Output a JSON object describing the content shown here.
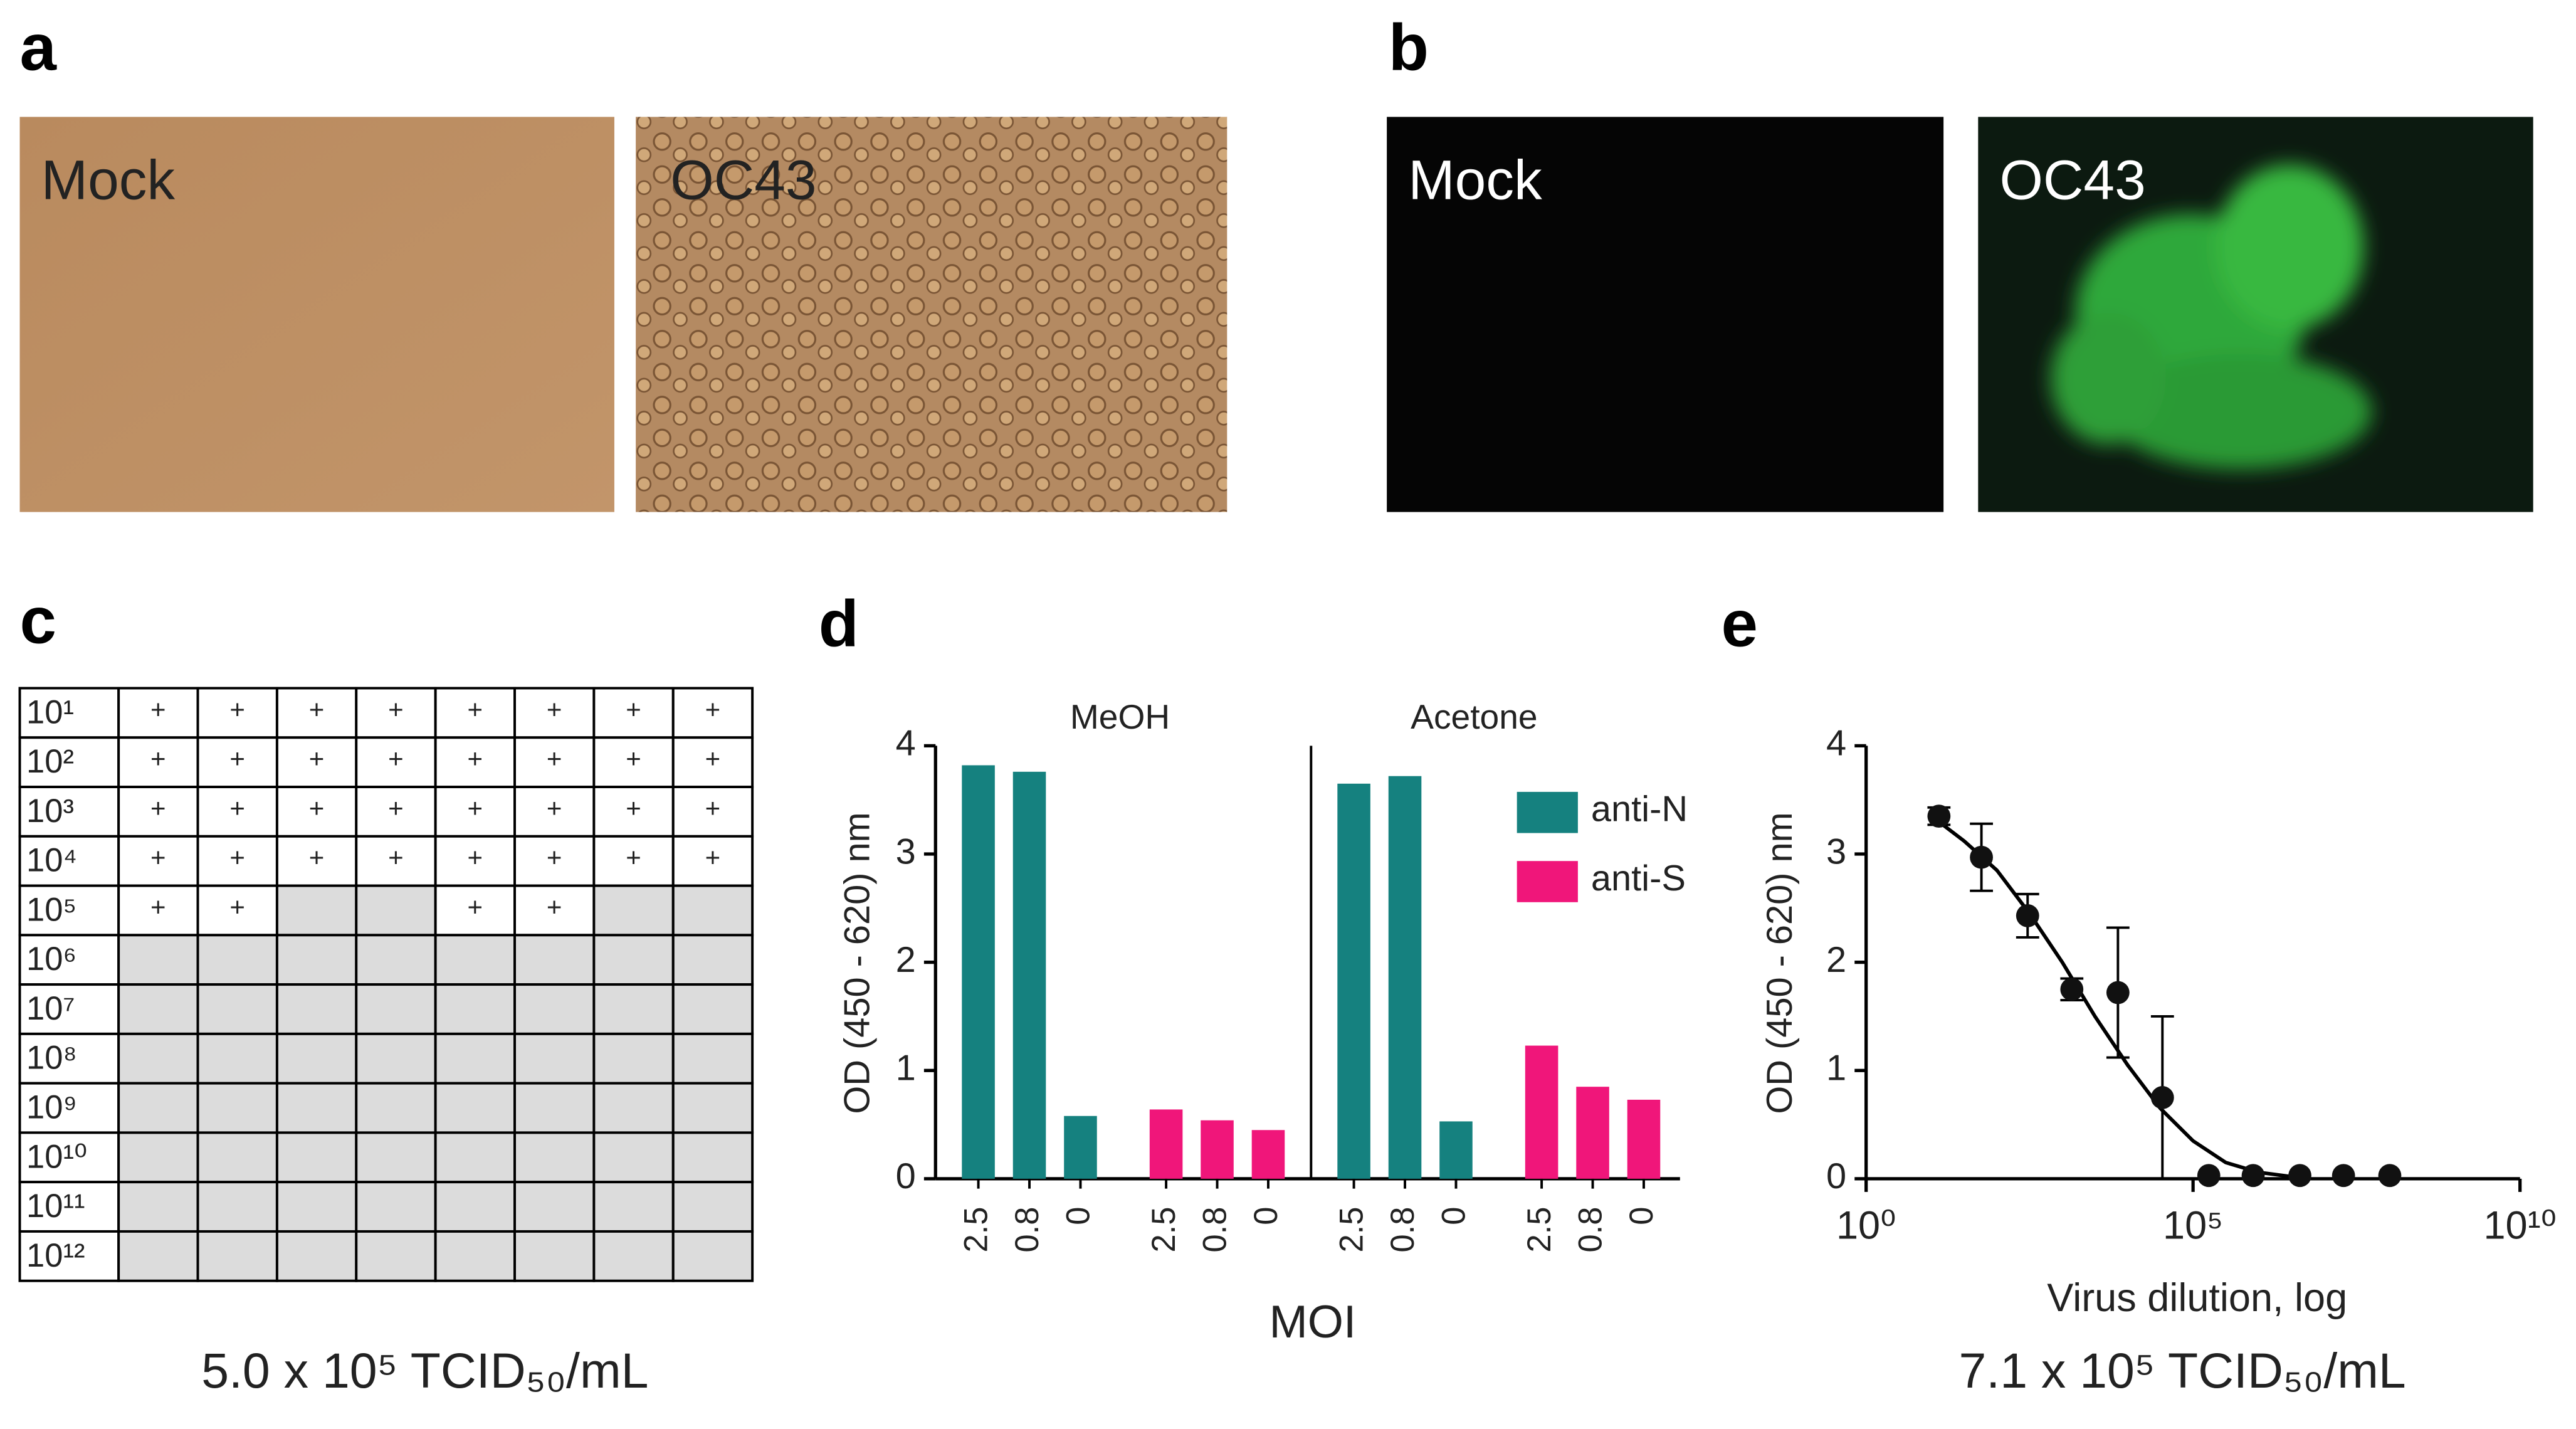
{
  "images": [
    {
      "label": "a",
      "titles": [
        "Mock",
        "OC43"
      ]
    },
    {
      "label": "b",
      "titles": [
        "Mock",
        "OC43"
      ]
    }
  ],
  "table": {
    "label": "c",
    "rows": [
      {
        "dilution": "10¹",
        "cells": [
          "+",
          "+",
          "+",
          "+",
          "+",
          "+",
          "+",
          "+"
        ]
      },
      {
        "dilution": "10²",
        "cells": [
          "+",
          "+",
          "+",
          "+",
          "+",
          "+",
          "+",
          "+"
        ]
      },
      {
        "dilution": "10³",
        "cells": [
          "+",
          "+",
          "+",
          "+",
          "+",
          "+",
          "+",
          "+"
        ]
      },
      {
        "dilution": "10⁴",
        "cells": [
          "+",
          "+",
          "+",
          "+",
          "+",
          "+",
          "+",
          "+"
        ]
      },
      {
        "dilution": "10⁵",
        "cells": [
          "+",
          "+",
          null,
          null,
          "+",
          "+",
          null,
          null
        ]
      },
      {
        "dilution": "10⁶",
        "cells": [
          null,
          null,
          null,
          null,
          null,
          null,
          null,
          null
        ]
      },
      {
        "dilution": "10⁷",
        "cells": [
          null,
          null,
          null,
          null,
          null,
          null,
          null,
          null
        ]
      },
      {
        "dilution": "10⁸",
        "cells": [
          null,
          null,
          null,
          null,
          null,
          null,
          null,
          null
        ]
      },
      {
        "dilution": "10⁹",
        "cells": [
          null,
          null,
          null,
          null,
          null,
          null,
          null,
          null
        ]
      },
      {
        "dilution": "10¹⁰",
        "cells": [
          null,
          null,
          null,
          null,
          null,
          null,
          null,
          null
        ]
      },
      {
        "dilution": "10¹¹",
        "cells": [
          null,
          null,
          null,
          null,
          null,
          null,
          null,
          null
        ]
      },
      {
        "dilution": "10¹²",
        "cells": [
          null,
          null,
          null,
          null,
          null,
          null,
          null,
          null
        ]
      }
    ],
    "caption": "5.0 x 10⁵ TCID₅₀/mL"
  },
  "chart_data": [
    {
      "type": "bar",
      "label": "d",
      "facets": [
        "MeOH",
        "Acetone"
      ],
      "categories": [
        "2.5",
        "0.8",
        "0"
      ],
      "series": [
        {
          "name": "anti-N",
          "color": "#15817f",
          "values": [
            [
              3.82,
              3.76,
              0.58
            ],
            [
              3.65,
              3.72,
              0.53
            ]
          ]
        },
        {
          "name": "anti-S",
          "color": "#f0167a",
          "values": [
            [
              0.64,
              0.54,
              0.45
            ],
            [
              1.23,
              0.85,
              0.73
            ]
          ]
        }
      ],
      "ylim": [
        0,
        4
      ],
      "yticks": [
        0,
        1,
        2,
        3,
        4
      ],
      "ylabel": "OD (450 - 620) nm",
      "xlabel": "MOI",
      "legend": "upper-right"
    },
    {
      "type": "scatter",
      "label": "e",
      "xscale": "log",
      "x": [
        13,
        58,
        295,
        1400,
        7100,
        34000,
        174000,
        830000,
        4300000,
        20000000,
        102000000
      ],
      "values": [
        3.35,
        2.97,
        2.43,
        1.75,
        1.72,
        0.75,
        0.03,
        0.03,
        0.03,
        0.03,
        0.03
      ],
      "errors": [
        0.08,
        0.31,
        0.2,
        0.1,
        0.6,
        0.75,
        null,
        null,
        null,
        null,
        null
      ],
      "fit": {
        "x": [
          10,
          31.6,
          100,
          316,
          1000,
          3162,
          10000,
          31623,
          100000,
          316228,
          1000000,
          3162278
        ],
        "y": [
          3.35,
          3.12,
          2.85,
          2.45,
          2.0,
          1.5,
          1.05,
          0.65,
          0.35,
          0.15,
          0.06,
          0.02
        ]
      },
      "xlim": [
        1,
        10000000000
      ],
      "xticks": [
        {
          "value": 1,
          "label": "10⁰"
        },
        {
          "value": 100000,
          "label": "10⁵"
        },
        {
          "value": 10000000000,
          "label": "10¹⁰"
        }
      ],
      "ylim": [
        0,
        4
      ],
      "yticks": [
        0,
        1,
        2,
        3,
        4
      ],
      "xlabel": "Virus dilution, log",
      "ylabel": "OD (450 - 620) nm",
      "caption": "7.1 x 10⁵ TCID₅₀/mL"
    }
  ]
}
